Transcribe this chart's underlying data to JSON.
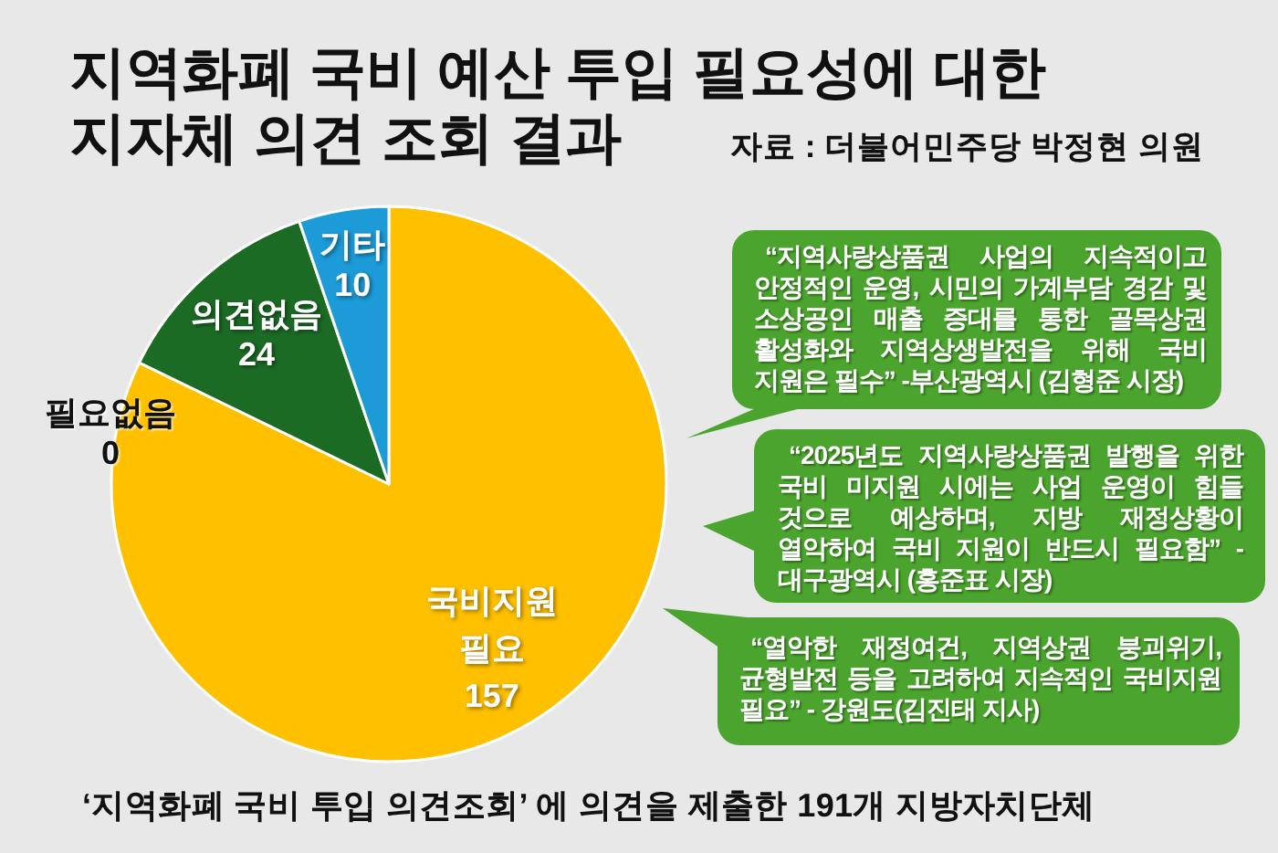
{
  "chart_data": {
    "type": "pie",
    "title": "지역화폐 국비 예산 투입 필요성에 대한\n지자체 의견 조회 결과",
    "subtitle": "자료 : 더불어민주당 박정현 의원",
    "categories": [
      "국비지원 필요",
      "필요없음",
      "의견없음",
      "기타"
    ],
    "values": [
      157,
      0,
      24,
      10
    ],
    "value_labels": [
      "157",
      "0",
      "24",
      "10"
    ],
    "colors": [
      "#ffc000",
      null,
      "#1c6b25",
      "#1c9bd8"
    ],
    "annotations": [
      "“지역사랑상품권 사업의 지속적이고 안정적인 운영, 시민의 가계부담 경감 및 소상공인 매출 증대를 통한 골목상권 활성화와 지역상생발전을 위해 국비 지원은 필수” -부산광역시 (김형준 시장)",
      "“2025년도 지역사랑상품권 발행을 위한 국비 미지원 시에는 사업 운영이 힘들 것으로 예상하며, 지방 재정상황이 열악하여 국비 지원이 반드시 필요함” -대구광역시 (홍준표 시장)",
      "“열악한 재정여건, 지역상권 붕괴위기, 균형발전 등을 고려하여 지속적인 국비지원 필요” - 강원도(김진태 지사)",
      "‘지역화폐 국비 투입 의견조회’ 에 의견을 제출한 191개 지방자치단체"
    ]
  }
}
